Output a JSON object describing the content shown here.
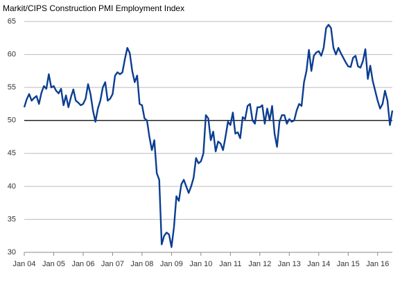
{
  "chart_data": {
    "type": "line",
    "title": "Markit/CIPS Construction PMI Employment Index",
    "categories": [
      "Jan 04",
      null,
      null,
      null,
      null,
      null,
      null,
      null,
      null,
      null,
      null,
      null,
      "Jan 05",
      null,
      null,
      null,
      null,
      null,
      null,
      null,
      null,
      null,
      null,
      null,
      "Jan 06",
      null,
      null,
      null,
      null,
      null,
      null,
      null,
      null,
      null,
      null,
      null,
      "Jan 07",
      null,
      null,
      null,
      null,
      null,
      null,
      null,
      null,
      null,
      null,
      null,
      "Jan 08",
      null,
      null,
      null,
      null,
      null,
      null,
      null,
      null,
      null,
      null,
      null,
      "Jan 09",
      null,
      null,
      null,
      null,
      null,
      null,
      null,
      null,
      null,
      null,
      null,
      "Jan 10",
      null,
      null,
      null,
      null,
      null,
      null,
      null,
      null,
      null,
      null,
      null,
      "Jan 11",
      null,
      null,
      null,
      null,
      null,
      null,
      null,
      null,
      null,
      null,
      null,
      "Jan 12",
      null,
      null,
      null,
      null,
      null,
      null,
      null,
      null,
      null,
      null,
      null,
      "Jan 13",
      null,
      null,
      null,
      null,
      null,
      null,
      null,
      null,
      null,
      null,
      null,
      "Jan 14",
      null,
      null,
      null,
      null,
      null,
      null,
      null,
      null,
      null,
      null,
      null,
      "Jan 15",
      null,
      null,
      null,
      null,
      null,
      null,
      null,
      null,
      null,
      null,
      null,
      "Jan 16",
      null,
      null,
      null,
      null,
      null,
      null
    ],
    "series": [
      {
        "name": "Employment Index",
        "color": "#0b3d91",
        "values": [
          52.0,
          53.2,
          54.0,
          53.0,
          53.4,
          53.7,
          52.5,
          54.2,
          55.2,
          54.8,
          57.0,
          55.0,
          55.2,
          54.5,
          54.1,
          54.8,
          52.3,
          53.8,
          52.0,
          53.5,
          54.7,
          53.0,
          52.7,
          52.3,
          52.5,
          53.3,
          55.5,
          54.0,
          51.5,
          49.8,
          51.8,
          53.0,
          55.0,
          55.8,
          53.0,
          53.3,
          54.0,
          56.8,
          57.3,
          57.0,
          57.3,
          59.3,
          61.0,
          60.2,
          57.5,
          55.8,
          56.8,
          52.5,
          52.3,
          50.3,
          50.0,
          47.5,
          45.5,
          47.0,
          42.0,
          41.0,
          31.2,
          32.5,
          33.0,
          32.7,
          30.8,
          33.8,
          38.5,
          37.8,
          40.3,
          41.0,
          40.0,
          39.0,
          40.0,
          41.3,
          44.3,
          43.5,
          43.8,
          45.0,
          50.8,
          50.3,
          47.0,
          48.3,
          45.3,
          46.8,
          46.5,
          45.5,
          47.5,
          49.8,
          49.3,
          51.2,
          48.0,
          48.2,
          47.3,
          50.5,
          50.2,
          52.2,
          52.5,
          50.0,
          49.5,
          52.0,
          52.0,
          52.3,
          49.5,
          51.8,
          50.0,
          52.2,
          48.0,
          46.0,
          49.8,
          50.8,
          50.8,
          49.5,
          50.2,
          49.8,
          50.0,
          51.5,
          52.5,
          52.2,
          55.8,
          57.5,
          60.7,
          57.5,
          59.8,
          60.3,
          60.5,
          59.8,
          61.0,
          64.0,
          64.5,
          64.0,
          61.0,
          60.0,
          61.0,
          60.2,
          59.5,
          58.8,
          58.2,
          58.1,
          59.5,
          59.8,
          58.2,
          58.0,
          59.0,
          60.8,
          56.3,
          58.3,
          56.0,
          54.5,
          53.0,
          51.8,
          52.5,
          54.5,
          53.0,
          49.3,
          51.5
        ]
      }
    ],
    "ylim": [
      30,
      65
    ],
    "yticks": [
      30,
      35,
      40,
      45,
      50,
      55,
      60,
      65
    ],
    "grid": true,
    "reference_line": 50
  }
}
